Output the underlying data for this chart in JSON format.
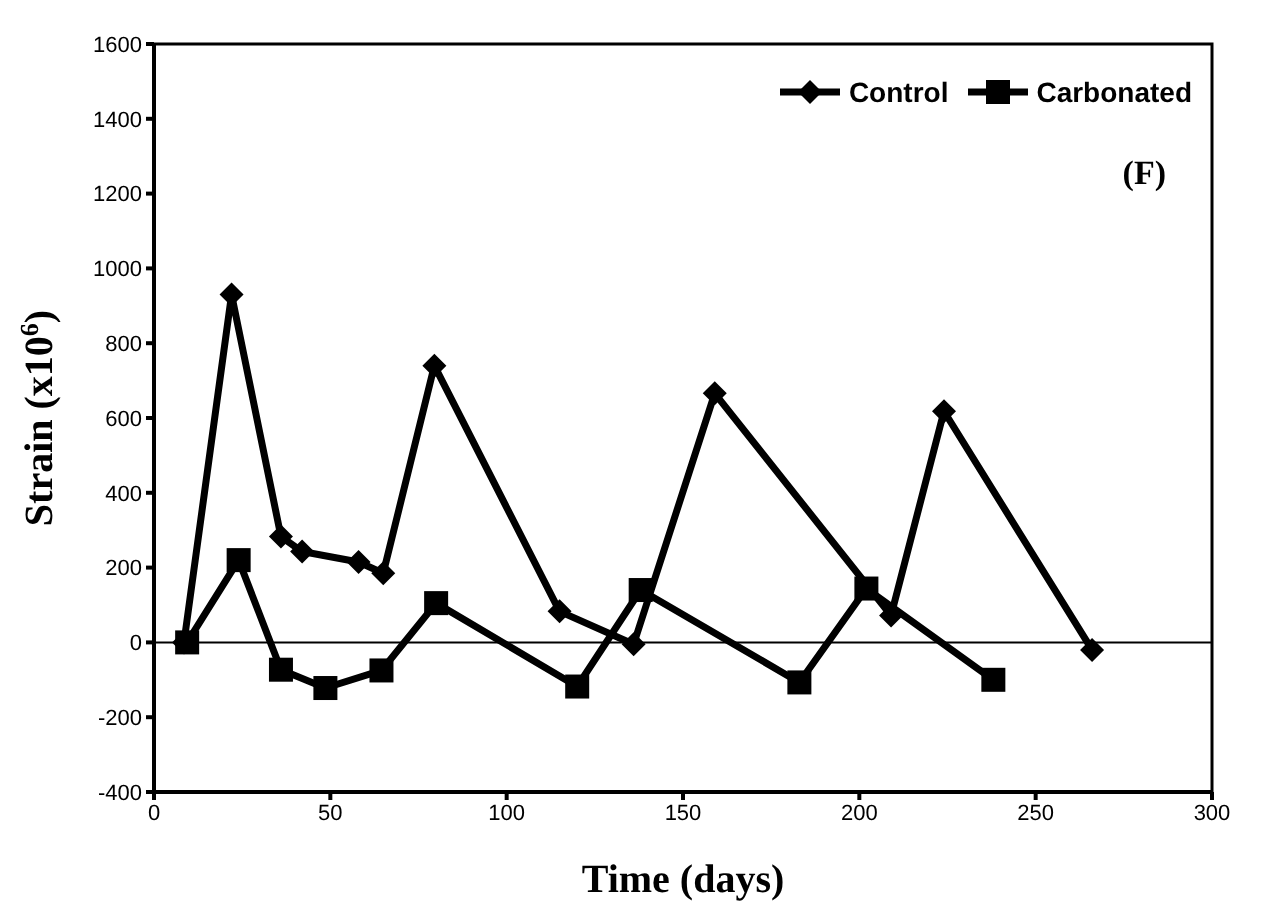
{
  "chart_data": {
    "type": "line",
    "xlabel": "Time (days)",
    "ylabel": "Strain (x10$^{6}$)",
    "annotations": [
      "(F)"
    ],
    "xlim": [
      0,
      300
    ],
    "xticks": [
      0,
      50,
      100,
      150,
      200,
      250,
      300
    ],
    "ylim": [
      -400,
      1600
    ],
    "yticks": [
      -400,
      -200,
      0,
      200,
      400,
      600,
      800,
      1000,
      1200,
      1400,
      1600
    ],
    "grid": false,
    "legend": "top right",
    "line_style": "solid",
    "ref_lines": [
      {
        "axis": "y",
        "value": 0,
        "color": "#000000"
      }
    ],
    "series": [
      {
        "name": "Control",
        "color": "#000000",
        "marker": "diamond",
        "x": [
          8.5,
          22,
          36,
          42,
          58,
          65,
          79.5,
          115,
          136,
          159,
          209,
          224,
          266
        ],
        "values": [
          0,
          930,
          283,
          243,
          215,
          185,
          740,
          83,
          -5,
          666,
          72,
          618,
          -20
        ]
      },
      {
        "name": "Carbonated",
        "color": "#000000",
        "marker": "square",
        "x": [
          9.4,
          24,
          36,
          48.6,
          64.5,
          80,
          120,
          138,
          183,
          202,
          238
        ],
        "values": [
          0,
          220,
          -73,
          -122,
          -75,
          105,
          -118,
          140,
          -107,
          144,
          -100
        ]
      }
    ]
  }
}
